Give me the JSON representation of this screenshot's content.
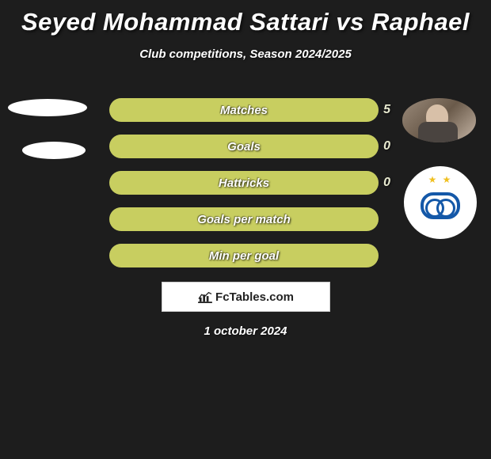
{
  "title": "Seyed Mohammad Sattari vs Raphael",
  "subtitle": "Club competitions, Season 2024/2025",
  "date": "1 october 2024",
  "brand": "FcTables.com",
  "colors": {
    "background": "#1d1d1d",
    "text": "#ffffff",
    "bar_left_player": "#c8c8c8",
    "bar_right_player": "#c8ce60",
    "bar_empty": "#4a4a4a",
    "value_text": "#e8ead0",
    "brand_box_bg": "#ffffff",
    "brand_text": "#222222",
    "club_blue": "#1458a8",
    "club_star": "#f0c020"
  },
  "club_logo": {
    "name": "Esteghlal",
    "stars": "★ ★"
  },
  "stats": [
    {
      "label": "Matches",
      "left_value": null,
      "right_value": "5",
      "left_pct": 0,
      "right_pct": 100,
      "left_color": "#c8ce60",
      "right_color": "#c8ce60"
    },
    {
      "label": "Goals",
      "left_value": null,
      "right_value": "0",
      "left_pct": 50,
      "right_pct": 50,
      "left_color": "#c8ce60",
      "right_color": "#c8ce60"
    },
    {
      "label": "Hattricks",
      "left_value": null,
      "right_value": "0",
      "left_pct": 50,
      "right_pct": 50,
      "left_color": "#c8ce60",
      "right_color": "#c8ce60"
    },
    {
      "label": "Goals per match",
      "left_value": null,
      "right_value": null,
      "left_pct": 50,
      "right_pct": 50,
      "left_color": "#c8ce60",
      "right_color": "#c8ce60"
    },
    {
      "label": "Min per goal",
      "left_value": null,
      "right_value": null,
      "left_pct": 50,
      "right_pct": 50,
      "left_color": "#c8ce60",
      "right_color": "#c8ce60"
    }
  ]
}
